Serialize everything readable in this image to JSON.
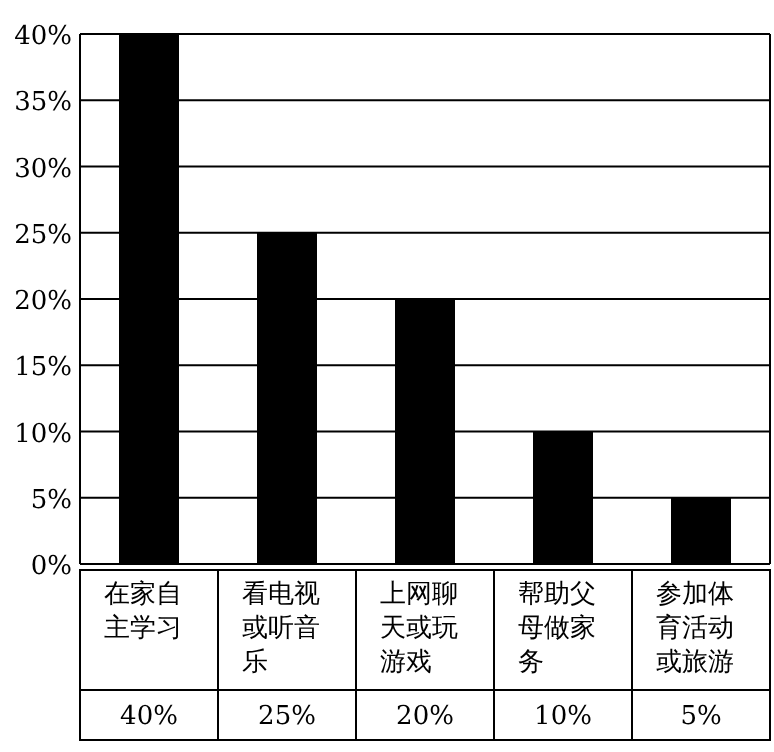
{
  "chart_data": {
    "type": "bar",
    "categories": [
      "在家自主学习",
      "看电视或听音乐",
      "上网聊天或玩游戏",
      "帮助父母做家务",
      "参加体育活动或旅游"
    ],
    "values": [
      40,
      25,
      20,
      10,
      5
    ],
    "color": "#000000",
    "data_labels": true,
    "ylim": [
      0,
      40
    ],
    "yticks": [
      {
        "value": 0,
        "label": "0%"
      },
      {
        "value": 5,
        "label": "5%"
      },
      {
        "value": 10,
        "label": "10%"
      },
      {
        "value": 15,
        "label": "15%"
      },
      {
        "value": 20,
        "label": "20%"
      },
      {
        "value": 25,
        "label": "25%"
      },
      {
        "value": 30,
        "label": "30%"
      },
      {
        "value": 35,
        "label": "35%"
      },
      {
        "value": 40,
        "label": "40%"
      }
    ],
    "value_labels": [
      "40%",
      "25%",
      "20%",
      "10%",
      "5%"
    ],
    "grid": "y"
  }
}
